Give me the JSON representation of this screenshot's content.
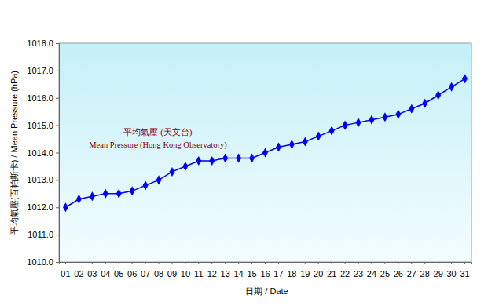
{
  "chart_data": {
    "type": "line",
    "x_label": "日期 / Date",
    "y_label": "平均氣壓(百帕斯卡) / Mean Pressure (hPa)",
    "annotations": [
      "平均氣壓 (天文台)",
      "Mean Pressure (Hong Kong Observatory)"
    ],
    "categories": [
      "01",
      "02",
      "03",
      "04",
      "05",
      "06",
      "07",
      "08",
      "09",
      "10",
      "11",
      "12",
      "13",
      "14",
      "15",
      "16",
      "17",
      "18",
      "19",
      "20",
      "21",
      "22",
      "23",
      "24",
      "25",
      "26",
      "27",
      "28",
      "29",
      "30",
      "31"
    ],
    "series": [
      {
        "color": "#0000ff",
        "marker": "diamond",
        "line_style": "solid",
        "values": [
          1012.0,
          1012.3,
          1012.4,
          1012.5,
          1012.5,
          1012.6,
          1012.8,
          1013.0,
          1013.3,
          1013.5,
          1013.7,
          1013.7,
          1013.8,
          1013.8,
          1013.8,
          1014.0,
          1014.2,
          1014.3,
          1014.4,
          1014.6,
          1014.8,
          1015.0,
          1015.1,
          1015.2,
          1015.3,
          1015.4,
          1015.6,
          1015.8,
          1016.1,
          1016.4,
          1016.7
        ]
      }
    ],
    "ylim": [
      1010,
      1018
    ],
    "yticks": [
      {
        "value": 1010,
        "label": "1010.0"
      },
      {
        "value": 1011,
        "label": "1011.0"
      },
      {
        "value": 1012,
        "label": "1012.0"
      },
      {
        "value": 1013,
        "label": "1013.0"
      },
      {
        "value": 1014,
        "label": "1014.0"
      },
      {
        "value": 1015,
        "label": "1015.0"
      },
      {
        "value": 1016,
        "label": "1016.0"
      },
      {
        "value": 1017,
        "label": "1017.0"
      },
      {
        "value": 1018,
        "label": "1018.0"
      }
    ],
    "grid": false
  }
}
